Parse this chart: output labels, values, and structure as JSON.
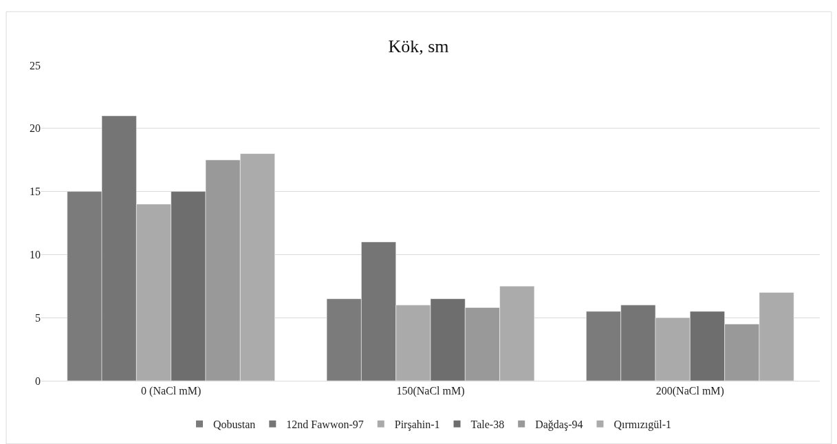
{
  "chart_data": {
    "type": "bar",
    "title": "Kök, sm",
    "categories": [
      "0 (NaCl mM)",
      "150(NaCl mM)",
      "200(NaCl mM)"
    ],
    "series": [
      {
        "name": "Qobustan",
        "color": "#7b7b7b",
        "values": [
          15,
          6.5,
          5.5
        ]
      },
      {
        "name": "12nd Fawwon-97",
        "color": "#757575",
        "values": [
          21,
          11,
          6
        ]
      },
      {
        "name": "Pirşahin-1",
        "color": "#aaaaaa",
        "values": [
          14,
          6,
          5
        ]
      },
      {
        "name": "Tale-38",
        "color": "#6e6e6e",
        "values": [
          15,
          6.5,
          5.5
        ]
      },
      {
        "name": "Dağdaş-94",
        "color": "#999999",
        "values": [
          17.5,
          5.8,
          4.5
        ]
      },
      {
        "name": "Qırmızıgül-1",
        "color": "#ababab",
        "values": [
          18,
          7.5,
          7
        ]
      }
    ],
    "ylim": [
      0,
      25
    ],
    "yticks": [
      0,
      5,
      10,
      15,
      20,
      25
    ],
    "grid": "y",
    "legend": "bottom"
  }
}
